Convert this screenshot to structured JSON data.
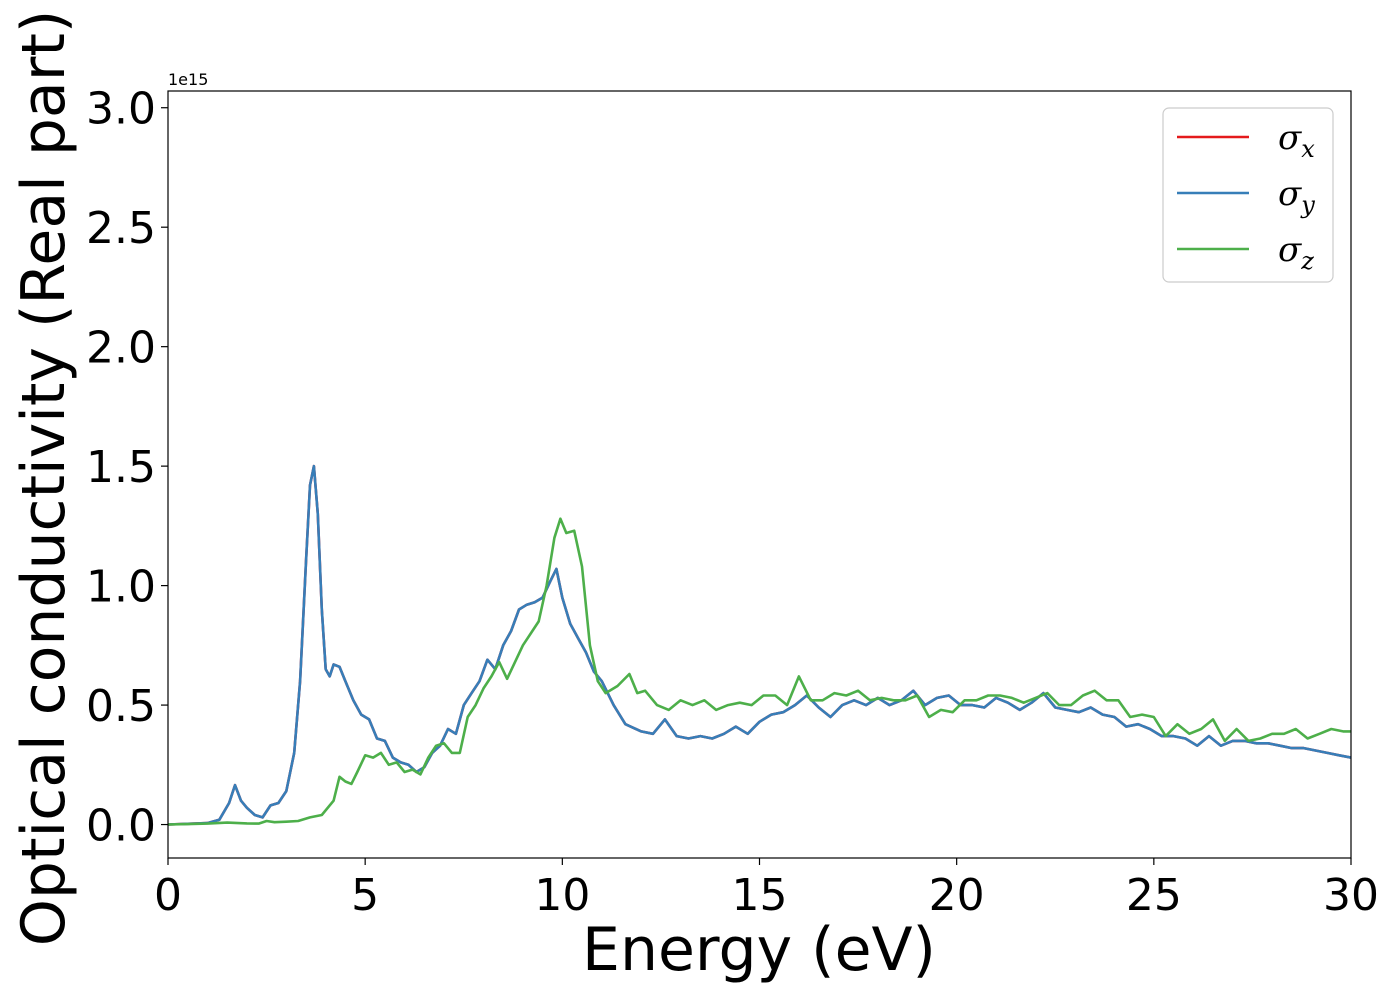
{
  "chart_data": {
    "type": "line",
    "title": "",
    "xlabel": "Energy (eV)",
    "ylabel": "Optical conductivity (Real part)",
    "y_offset_label": "1e15",
    "xlim": [
      0,
      30
    ],
    "ylim": [
      -0.14,
      3.07
    ],
    "x_ticks": [
      "0",
      "5",
      "10",
      "15",
      "20",
      "25",
      "30"
    ],
    "x_tick_values": [
      0,
      5,
      10,
      15,
      20,
      25,
      30
    ],
    "y_ticks": [
      "0.0",
      "0.5",
      "1.0",
      "1.5",
      "2.0",
      "2.5",
      "3.0"
    ],
    "y_tick_values": [
      0,
      0.5,
      1.0,
      1.5,
      2.0,
      2.5,
      3.0
    ],
    "grid": false,
    "legend_position": "top-right",
    "series": [
      {
        "name": "σ",
        "subscript": "x",
        "color": "#e41a1c",
        "x": [
          0,
          0.5,
          1.0,
          1.3,
          1.55,
          1.7,
          1.85,
          2.0,
          2.2,
          2.4,
          2.6,
          2.8,
          3.0,
          3.2,
          3.35,
          3.5,
          3.6,
          3.7,
          3.8,
          3.9,
          4.0,
          4.1,
          4.2,
          4.35,
          4.5,
          4.7,
          4.9,
          5.1,
          5.3,
          5.5,
          5.7,
          5.9,
          6.1,
          6.3,
          6.5,
          6.7,
          6.9,
          7.1,
          7.3,
          7.5,
          7.7,
          7.9,
          8.1,
          8.3,
          8.5,
          8.7,
          8.9,
          9.1,
          9.3,
          9.5,
          9.7,
          9.85,
          10.0,
          10.2,
          10.4,
          10.6,
          10.8,
          11.0,
          11.3,
          11.6,
          12.0,
          12.3,
          12.6,
          12.9,
          13.2,
          13.5,
          13.8,
          14.1,
          14.4,
          14.7,
          15.0,
          15.3,
          15.6,
          15.9,
          16.2,
          16.5,
          16.8,
          17.1,
          17.4,
          17.7,
          18.0,
          18.3,
          18.6,
          18.9,
          19.2,
          19.5,
          19.8,
          20.1,
          20.4,
          20.7,
          21.0,
          21.3,
          21.6,
          21.9,
          22.2,
          22.5,
          22.8,
          23.1,
          23.4,
          23.7,
          24.0,
          24.3,
          24.6,
          24.9,
          25.2,
          25.5,
          25.8,
          26.1,
          26.4,
          26.7,
          27.0,
          27.3,
          27.6,
          27.9,
          28.2,
          28.5,
          28.8,
          29.1,
          29.4,
          29.7,
          30.0
        ],
        "y": [
          0,
          0.003,
          0.006,
          0.02,
          0.09,
          0.165,
          0.1,
          0.07,
          0.04,
          0.03,
          0.08,
          0.09,
          0.14,
          0.3,
          0.6,
          1.1,
          1.42,
          1.5,
          1.3,
          0.9,
          0.65,
          0.62,
          0.67,
          0.66,
          0.6,
          0.52,
          0.46,
          0.44,
          0.36,
          0.35,
          0.28,
          0.26,
          0.25,
          0.22,
          0.24,
          0.3,
          0.33,
          0.4,
          0.38,
          0.5,
          0.55,
          0.6,
          0.69,
          0.65,
          0.75,
          0.81,
          0.9,
          0.92,
          0.93,
          0.95,
          1.02,
          1.07,
          0.95,
          0.84,
          0.78,
          0.72,
          0.64,
          0.6,
          0.5,
          0.42,
          0.39,
          0.38,
          0.44,
          0.37,
          0.36,
          0.37,
          0.36,
          0.38,
          0.41,
          0.38,
          0.43,
          0.46,
          0.47,
          0.5,
          0.54,
          0.49,
          0.45,
          0.5,
          0.52,
          0.5,
          0.53,
          0.5,
          0.52,
          0.56,
          0.5,
          0.53,
          0.54,
          0.5,
          0.5,
          0.49,
          0.53,
          0.51,
          0.48,
          0.51,
          0.55,
          0.49,
          0.48,
          0.47,
          0.49,
          0.46,
          0.45,
          0.41,
          0.42,
          0.4,
          0.37,
          0.37,
          0.36,
          0.33,
          0.37,
          0.33,
          0.35,
          0.35,
          0.34,
          0.34,
          0.33,
          0.32,
          0.32,
          0.31,
          0.3,
          0.29,
          0.28
        ]
      },
      {
        "name": "σ",
        "subscript": "y",
        "color": "#377eb8",
        "x": [
          0,
          0.5,
          1.0,
          1.3,
          1.55,
          1.7,
          1.85,
          2.0,
          2.2,
          2.4,
          2.6,
          2.8,
          3.0,
          3.2,
          3.35,
          3.5,
          3.6,
          3.7,
          3.8,
          3.9,
          4.0,
          4.1,
          4.2,
          4.35,
          4.5,
          4.7,
          4.9,
          5.1,
          5.3,
          5.5,
          5.7,
          5.9,
          6.1,
          6.3,
          6.5,
          6.7,
          6.9,
          7.1,
          7.3,
          7.5,
          7.7,
          7.9,
          8.1,
          8.3,
          8.5,
          8.7,
          8.9,
          9.1,
          9.3,
          9.5,
          9.7,
          9.85,
          10.0,
          10.2,
          10.4,
          10.6,
          10.8,
          11.0,
          11.3,
          11.6,
          12.0,
          12.3,
          12.6,
          12.9,
          13.2,
          13.5,
          13.8,
          14.1,
          14.4,
          14.7,
          15.0,
          15.3,
          15.6,
          15.9,
          16.2,
          16.5,
          16.8,
          17.1,
          17.4,
          17.7,
          18.0,
          18.3,
          18.6,
          18.9,
          19.2,
          19.5,
          19.8,
          20.1,
          20.4,
          20.7,
          21.0,
          21.3,
          21.6,
          21.9,
          22.2,
          22.5,
          22.8,
          23.1,
          23.4,
          23.7,
          24.0,
          24.3,
          24.6,
          24.9,
          25.2,
          25.5,
          25.8,
          26.1,
          26.4,
          26.7,
          27.0,
          27.3,
          27.6,
          27.9,
          28.2,
          28.5,
          28.8,
          29.1,
          29.4,
          29.7,
          30.0
        ],
        "y": [
          0,
          0.003,
          0.006,
          0.02,
          0.09,
          0.165,
          0.1,
          0.07,
          0.04,
          0.03,
          0.08,
          0.09,
          0.14,
          0.3,
          0.6,
          1.1,
          1.42,
          1.5,
          1.3,
          0.9,
          0.65,
          0.62,
          0.67,
          0.66,
          0.6,
          0.52,
          0.46,
          0.44,
          0.36,
          0.35,
          0.28,
          0.26,
          0.25,
          0.22,
          0.24,
          0.3,
          0.33,
          0.4,
          0.38,
          0.5,
          0.55,
          0.6,
          0.69,
          0.65,
          0.75,
          0.81,
          0.9,
          0.92,
          0.93,
          0.95,
          1.02,
          1.07,
          0.95,
          0.84,
          0.78,
          0.72,
          0.64,
          0.6,
          0.5,
          0.42,
          0.39,
          0.38,
          0.44,
          0.37,
          0.36,
          0.37,
          0.36,
          0.38,
          0.41,
          0.38,
          0.43,
          0.46,
          0.47,
          0.5,
          0.54,
          0.49,
          0.45,
          0.5,
          0.52,
          0.5,
          0.53,
          0.5,
          0.52,
          0.56,
          0.5,
          0.53,
          0.54,
          0.5,
          0.5,
          0.49,
          0.53,
          0.51,
          0.48,
          0.51,
          0.55,
          0.49,
          0.48,
          0.47,
          0.49,
          0.46,
          0.45,
          0.41,
          0.42,
          0.4,
          0.37,
          0.37,
          0.36,
          0.33,
          0.37,
          0.33,
          0.35,
          0.35,
          0.34,
          0.34,
          0.33,
          0.32,
          0.32,
          0.31,
          0.3,
          0.29,
          0.28
        ]
      },
      {
        "name": "σ",
        "subscript": "z",
        "color": "#4daf4a",
        "x": [
          0,
          0.5,
          1.0,
          1.5,
          2.0,
          2.3,
          2.5,
          2.7,
          3.0,
          3.3,
          3.6,
          3.9,
          4.2,
          4.35,
          4.5,
          4.65,
          4.8,
          5.0,
          5.2,
          5.4,
          5.6,
          5.8,
          6.0,
          6.2,
          6.4,
          6.6,
          6.8,
          7.0,
          7.2,
          7.4,
          7.6,
          7.8,
          8.0,
          8.2,
          8.4,
          8.6,
          8.8,
          9.0,
          9.2,
          9.4,
          9.6,
          9.8,
          9.95,
          10.1,
          10.3,
          10.5,
          10.7,
          10.9,
          11.1,
          11.4,
          11.7,
          11.9,
          12.1,
          12.4,
          12.7,
          13.0,
          13.3,
          13.6,
          13.9,
          14.2,
          14.5,
          14.8,
          15.1,
          15.4,
          15.7,
          16.0,
          16.3,
          16.6,
          16.9,
          17.2,
          17.5,
          17.8,
          18.1,
          18.4,
          18.7,
          19.0,
          19.3,
          19.6,
          19.9,
          20.2,
          20.5,
          20.8,
          21.1,
          21.4,
          21.7,
          22.0,
          22.3,
          22.6,
          22.9,
          23.2,
          23.5,
          23.8,
          24.1,
          24.4,
          24.7,
          25.0,
          25.3,
          25.6,
          25.9,
          26.2,
          26.5,
          26.8,
          27.1,
          27.4,
          27.7,
          28.0,
          28.3,
          28.6,
          28.9,
          29.2,
          29.5,
          29.8,
          30.0
        ],
        "y": [
          0,
          0.002,
          0.004,
          0.008,
          0.005,
          0.004,
          0.015,
          0.01,
          0.012,
          0.015,
          0.03,
          0.04,
          0.1,
          0.2,
          0.18,
          0.17,
          0.22,
          0.29,
          0.28,
          0.3,
          0.25,
          0.26,
          0.22,
          0.23,
          0.21,
          0.28,
          0.33,
          0.34,
          0.3,
          0.3,
          0.45,
          0.5,
          0.57,
          0.62,
          0.68,
          0.61,
          0.68,
          0.75,
          0.8,
          0.85,
          1.0,
          1.2,
          1.28,
          1.22,
          1.23,
          1.08,
          0.75,
          0.6,
          0.55,
          0.58,
          0.63,
          0.55,
          0.56,
          0.5,
          0.48,
          0.52,
          0.5,
          0.52,
          0.48,
          0.5,
          0.51,
          0.5,
          0.54,
          0.54,
          0.5,
          0.62,
          0.52,
          0.52,
          0.55,
          0.54,
          0.56,
          0.52,
          0.53,
          0.52,
          0.52,
          0.54,
          0.45,
          0.48,
          0.47,
          0.52,
          0.52,
          0.54,
          0.54,
          0.53,
          0.51,
          0.53,
          0.55,
          0.5,
          0.5,
          0.54,
          0.56,
          0.52,
          0.52,
          0.45,
          0.46,
          0.45,
          0.37,
          0.42,
          0.38,
          0.4,
          0.44,
          0.35,
          0.4,
          0.35,
          0.36,
          0.38,
          0.38,
          0.4,
          0.36,
          0.38,
          0.4,
          0.39,
          0.39
        ]
      }
    ]
  }
}
